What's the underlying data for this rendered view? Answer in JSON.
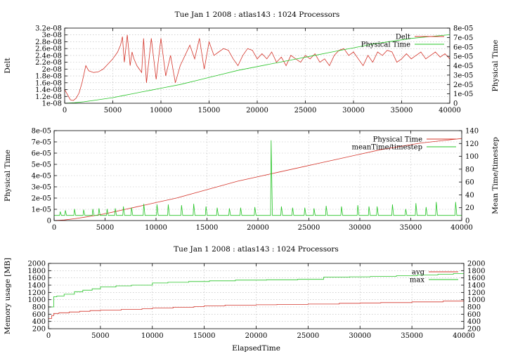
{
  "colors": {
    "red": "#d4342a",
    "green": "#27c427"
  },
  "chart_data": [
    {
      "type": "line",
      "title": "Tue Jan 1 2008 : atlas143 : 1024 Processors",
      "ylabel": "Delt",
      "y2label": "Physical Time",
      "xlim": [
        0,
        40000
      ],
      "ylim": [
        1e-08,
        3.2e-08
      ],
      "y2lim": [
        0,
        8e-05
      ],
      "grid": true,
      "legend_position": "top-right",
      "xticks": [
        0,
        5000,
        10000,
        15000,
        20000,
        25000,
        30000,
        35000,
        40000
      ],
      "xtick_labels": [
        "0",
        "5000",
        "10000",
        "15000",
        "20000",
        "25000",
        "30000",
        "35000",
        "40000"
      ],
      "yticks": [
        1e-08,
        1.2e-08,
        1.4e-08,
        1.6e-08,
        1.8e-08,
        2e-08,
        2.2e-08,
        2.4e-08,
        2.6e-08,
        2.8e-08,
        3e-08,
        3.2e-08
      ],
      "ytick_labels": [
        "1e-08",
        "1.2e-08",
        "1.4e-08",
        "1.6e-08",
        "1.8e-08",
        "2e-08",
        "2.2e-08",
        "2.4e-08",
        "2.6e-08",
        "2.8e-08",
        "3e-08",
        "3.2e-08"
      ],
      "y2ticks": [
        0,
        1e-05,
        2e-05,
        3e-05,
        4e-05,
        5e-05,
        6e-05,
        7e-05,
        8e-05
      ],
      "y2tick_labels": [
        "0",
        "1e-05",
        "2e-05",
        "3e-05",
        "4e-05",
        "5e-05",
        "6e-05",
        "7e-05",
        "8e-05"
      ],
      "series": [
        {
          "name": "Delt",
          "color": "red",
          "axis": "y",
          "x": [
            0,
            300,
            600,
            900,
            1200,
            1500,
            1800,
            2200,
            2500,
            3000,
            3500,
            4000,
            4500,
            5000,
            5500,
            5800,
            6000,
            6200,
            6500,
            6800,
            7000,
            7200,
            7500,
            8000,
            8200,
            8500,
            9000,
            9500,
            10000,
            10500,
            11000,
            11500,
            12000,
            12500,
            13000,
            13500,
            14000,
            14500,
            15000,
            15500,
            16000,
            16500,
            17000,
            17500,
            18000,
            18500,
            19000,
            19500,
            20000,
            20500,
            21000,
            21500,
            22000,
            22500,
            23000,
            23500,
            24000,
            24500,
            25000,
            25500,
            26000,
            26500,
            27000,
            27500,
            28000,
            28500,
            29000,
            29500,
            30000,
            30500,
            31000,
            31500,
            32000,
            32500,
            33000,
            33500,
            34000,
            34500,
            35000,
            35500,
            36000,
            36500,
            37000,
            37500,
            38000,
            38500,
            39000,
            39500,
            40000
          ],
          "y": [
            1.4e-08,
            1.25e-08,
            1.1e-08,
            1.08e-08,
            1.15e-08,
            1.3e-08,
            1.6e-08,
            2.1e-08,
            1.95e-08,
            1.9e-08,
            1.92e-08,
            2e-08,
            2.15e-08,
            2.3e-08,
            2.5e-08,
            2.7e-08,
            2.95e-08,
            2.2e-08,
            3e-08,
            2.1e-08,
            2.5e-08,
            2.3e-08,
            2.1e-08,
            1.9e-08,
            2.9e-08,
            1.6e-08,
            2.9e-08,
            1.7e-08,
            2.9e-08,
            1.8e-08,
            2.4e-08,
            1.6e-08,
            2.1e-08,
            2.4e-08,
            2.7e-08,
            2.3e-08,
            2.9e-08,
            2e-08,
            2.8e-08,
            2.4e-08,
            2.5e-08,
            2.6e-08,
            2.55e-08,
            2.3e-08,
            2.1e-08,
            2.4e-08,
            2.6e-08,
            2.55e-08,
            2.3e-08,
            2.45e-08,
            2.3e-08,
            2.5e-08,
            2.2e-08,
            2.35e-08,
            2.1e-08,
            2.4e-08,
            2.3e-08,
            2.2e-08,
            2.4e-08,
            2.3e-08,
            2.45e-08,
            2.2e-08,
            2.3e-08,
            2.1e-08,
            2.4e-08,
            2.55e-08,
            2.6e-08,
            2.4e-08,
            2.5e-08,
            2.3e-08,
            2.1e-08,
            2.4e-08,
            2.2e-08,
            2.5e-08,
            2.4e-08,
            2.55e-08,
            2.5e-08,
            2.2e-08,
            2.3e-08,
            2.45e-08,
            2.3e-08,
            2.4e-08,
            2.5e-08,
            2.3e-08,
            2.4e-08,
            2.5e-08,
            2.35e-08,
            2.45e-08,
            2.3e-08
          ]
        },
        {
          "name": "Physical Time",
          "color": "green",
          "axis": "y2",
          "x": [
            0,
            1000,
            2000,
            3000,
            4000,
            5000,
            6000,
            7000,
            8000,
            9000,
            10000,
            12000,
            14000,
            16000,
            18000,
            20000,
            22000,
            24000,
            26000,
            28000,
            30000,
            32000,
            34000,
            36000,
            38000,
            40000
          ],
          "y": [
            0,
            5e-07,
            1.6e-06,
            3e-06,
            4.5e-06,
            6e-06,
            8e-06,
            1e-05,
            1.2e-05,
            1.4e-05,
            1.6e-05,
            2e-05,
            2.5e-05,
            3e-05,
            3.5e-05,
            3.9e-05,
            4.3e-05,
            4.7e-05,
            5.1e-05,
            5.5e-05,
            5.9e-05,
            6.3e-05,
            6.6e-05,
            6.9e-05,
            7.1e-05,
            7.3e-05
          ]
        }
      ]
    },
    {
      "type": "line",
      "ylabel": "Physical Time",
      "y2label": "Mean Time/timestep",
      "xlim": [
        0,
        40000
      ],
      "ylim": [
        0,
        8e-05
      ],
      "y2lim": [
        0,
        140
      ],
      "grid": true,
      "legend_position": "top-right",
      "xticks": [
        0,
        5000,
        10000,
        15000,
        20000,
        25000,
        30000,
        35000,
        40000
      ],
      "xtick_labels": [
        "0",
        "5000",
        "10000",
        "15000",
        "20000",
        "25000",
        "30000",
        "35000",
        "40000"
      ],
      "yticks": [
        0,
        1e-05,
        2e-05,
        3e-05,
        4e-05,
        5e-05,
        6e-05,
        7e-05,
        8e-05
      ],
      "ytick_labels": [
        "0",
        "1e-05",
        "2e-05",
        "3e-05",
        "4e-05",
        "5e-05",
        "6e-05",
        "7e-05",
        "8e-05"
      ],
      "y2ticks": [
        0,
        20,
        40,
        60,
        80,
        100,
        120,
        140
      ],
      "y2tick_labels": [
        "0",
        "20",
        "40",
        "60",
        "80",
        "100",
        "120",
        "140"
      ],
      "series": [
        {
          "name": "Physical Time",
          "color": "red",
          "axis": "y",
          "x": [
            0,
            1000,
            2000,
            3000,
            4000,
            5000,
            6000,
            7000,
            8000,
            9000,
            10000,
            12000,
            14000,
            16000,
            18000,
            20000,
            22000,
            24000,
            26000,
            28000,
            30000,
            32000,
            34000,
            36000,
            38000,
            40000
          ],
          "y": [
            0,
            5e-07,
            1.6e-06,
            3e-06,
            4.5e-06,
            6e-06,
            8e-06,
            1e-05,
            1.2e-05,
            1.4e-05,
            1.6e-05,
            2e-05,
            2.5e-05,
            3e-05,
            3.5e-05,
            3.9e-05,
            4.3e-05,
            4.7e-05,
            5.1e-05,
            5.5e-05,
            5.9e-05,
            6.3e-05,
            6.6e-05,
            6.9e-05,
            7.1e-05,
            7.3e-05
          ]
        },
        {
          "name": "meanTime/timestep",
          "color": "green",
          "axis": "y2",
          "baseline": 8,
          "spikes": [
            [
              600,
              14
            ],
            [
              1100,
              16
            ],
            [
              2000,
              18
            ],
            [
              2900,
              17
            ],
            [
              3800,
              18
            ],
            [
              4400,
              19
            ],
            [
              5200,
              18
            ],
            [
              6000,
              19
            ],
            [
              6800,
              22
            ],
            [
              7600,
              20
            ],
            [
              8800,
              26
            ],
            [
              10100,
              25
            ],
            [
              11200,
              25
            ],
            [
              12500,
              24
            ],
            [
              13700,
              26
            ],
            [
              14900,
              22
            ],
            [
              16000,
              20
            ],
            [
              17200,
              19
            ],
            [
              18300,
              20
            ],
            [
              19700,
              21
            ],
            [
              21300,
              125
            ],
            [
              22300,
              22
            ],
            [
              23400,
              20
            ],
            [
              24600,
              20
            ],
            [
              25500,
              19
            ],
            [
              26700,
              23
            ],
            [
              28200,
              22
            ],
            [
              29800,
              24
            ],
            [
              30900,
              22
            ],
            [
              31700,
              22
            ],
            [
              33200,
              25
            ],
            [
              34500,
              18
            ],
            [
              35500,
              27
            ],
            [
              36500,
              21
            ],
            [
              37500,
              29
            ],
            [
              39400,
              29
            ]
          ]
        }
      ]
    },
    {
      "type": "line",
      "title": "Tue Jan 1 2008 : atlas143 : 1024 Processors",
      "xlabel": "ElapsedTime",
      "ylabel": "Memory usage [MB]",
      "xlim": [
        0,
        40000
      ],
      "ylim": [
        200,
        2000
      ],
      "y2lim": [
        200,
        2000
      ],
      "grid": true,
      "legend_position": "top-right",
      "xticks": [
        0,
        5000,
        10000,
        15000,
        20000,
        25000,
        30000,
        35000,
        40000
      ],
      "xtick_labels": [
        "0",
        "5000",
        "10000",
        "15000",
        "20000",
        "25000",
        "30000",
        "35000",
        "40000"
      ],
      "yticks": [
        200,
        400,
        600,
        800,
        1000,
        1200,
        1400,
        1600,
        1800,
        2000
      ],
      "ytick_labels": [
        "200",
        "400",
        "600",
        "800",
        "1000",
        "1200",
        "1400",
        "1600",
        "1800",
        "2000"
      ],
      "y2ticks": [
        200,
        400,
        600,
        800,
        1000,
        1200,
        1400,
        1600,
        1800,
        2000
      ],
      "y2tick_labels": [
        "200",
        "400",
        "600",
        "800",
        "1000",
        "1200",
        "1400",
        "1600",
        "1800",
        "2000"
      ],
      "series": [
        {
          "name": "avg",
          "color": "red",
          "axis": "y",
          "step": true,
          "x": [
            0,
            300,
            500,
            1000,
            2000,
            3000,
            4000,
            5000,
            7000,
            9000,
            10000,
            12000,
            14000,
            15000,
            17000,
            20000,
            22000,
            25000,
            28000,
            30000,
            32000,
            35000,
            38000,
            40000
          ],
          "y": [
            480,
            560,
            620,
            640,
            660,
            680,
            700,
            710,
            730,
            750,
            770,
            790,
            810,
            830,
            850,
            860,
            870,
            880,
            900,
            910,
            920,
            940,
            960,
            990
          ]
        },
        {
          "name": "max",
          "color": "green",
          "axis": "y",
          "step": true,
          "x": [
            0,
            500,
            800,
            1500,
            2500,
            3300,
            4200,
            5000,
            6500,
            8000,
            10000,
            11500,
            13500,
            15500,
            18000,
            21000,
            24000,
            26500,
            29000,
            31000,
            33500,
            35500,
            37500,
            39000,
            40000
          ],
          "y": [
            800,
            1080,
            1100,
            1150,
            1220,
            1260,
            1300,
            1350,
            1380,
            1400,
            1460,
            1480,
            1500,
            1520,
            1540,
            1550,
            1560,
            1620,
            1630,
            1640,
            1660,
            1680,
            1700,
            1720,
            1720
          ]
        }
      ]
    }
  ]
}
